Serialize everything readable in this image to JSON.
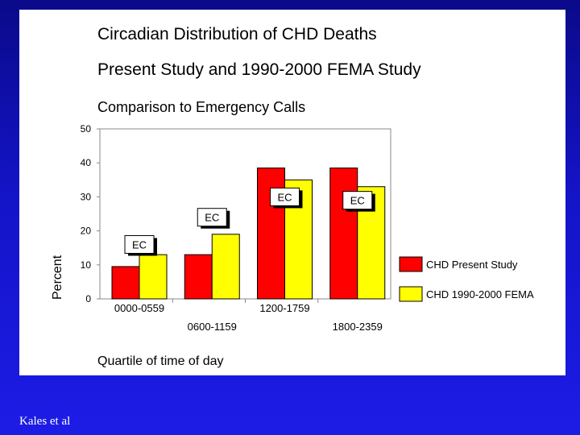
{
  "credit": "Kales et al",
  "chart_data": {
    "type": "bar",
    "title_lines": [
      "Circadian Distribution of CHD Deaths",
      "Present Study and 1990-2000 FEMA Study"
    ],
    "subtitle": "Comparison to Emergency Calls",
    "xlabel": "Quartile of time of day",
    "ylabel": "Percent",
    "ylim": [
      0,
      50
    ],
    "yticks": [
      "0",
      "10",
      "20",
      "30",
      "40",
      "50"
    ],
    "categories": [
      "0000-0559",
      "0600-1159",
      "1200-1759",
      "1800-2359"
    ],
    "series": [
      {
        "name": "CHD Present Study",
        "color": "#ff0000",
        "values": [
          9.5,
          13,
          38.5,
          38.5
        ]
      },
      {
        "name": "CHD 1990-2000 FEMA",
        "color": "#ffff00",
        "values": [
          13,
          19,
          35,
          33
        ]
      }
    ],
    "annotations": [
      {
        "text": "EC",
        "category": 0,
        "value": 16
      },
      {
        "text": "EC",
        "category": 1,
        "value": 24
      },
      {
        "text": "EC",
        "category": 2,
        "value": 30
      },
      {
        "text": "EC",
        "category": 3,
        "value": 29
      }
    ],
    "legend_position": "right",
    "grid": false
  }
}
